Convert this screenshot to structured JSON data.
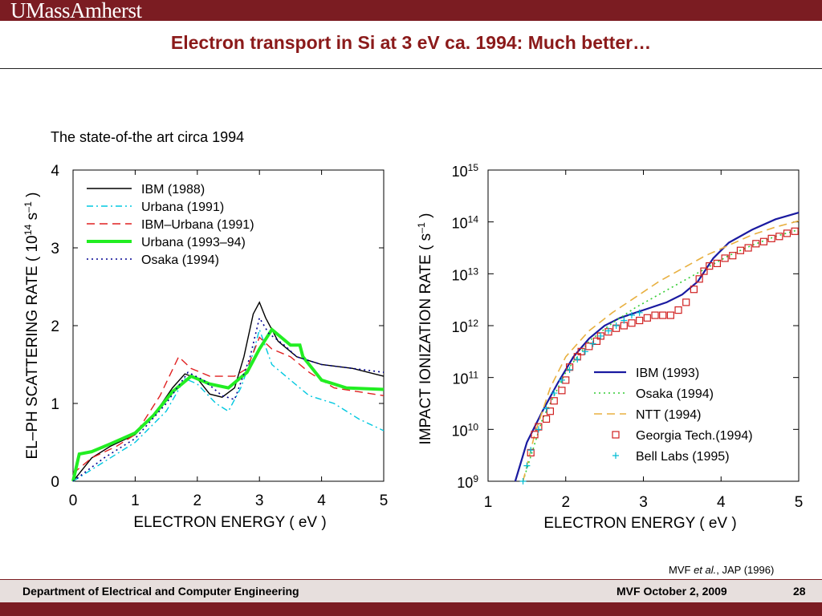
{
  "header": {
    "logo_text": "UMassAmherst"
  },
  "slide": {
    "title": "Electron transport in Si at 3 eV ca. 1994: Much better…",
    "subtitle": "The state-of-the art circa 1994",
    "citation": {
      "author": "MVF ",
      "etal": "et al.",
      "rest": ", JAP (1996)"
    }
  },
  "footer": {
    "department": "Department of Electrical and Computer Engineering",
    "date": "MVF October 2, 2009",
    "page": "28"
  },
  "colors": {
    "brand": "#7b1c22",
    "title": "#8b1a1a",
    "footer_bg": "#e7dfdd"
  },
  "chart_data": [
    {
      "type": "line",
      "xlabel": "ELECTRON ENERGY ( eV )",
      "ylabel": "EL–PH SCATTERING RATE ( 10<sup>14</sup> s<sup>–1</sup> )",
      "xlim": [
        0,
        5
      ],
      "ylim": [
        0,
        4
      ],
      "xticks": [
        "0",
        "1",
        "2",
        "3",
        "4",
        "5"
      ],
      "yticks": [
        "0",
        "1",
        "2",
        "3",
        "4"
      ],
      "legend": "top-left",
      "series": [
        {
          "name": "IBM (1988)",
          "color": "#000000",
          "style": "solid",
          "points": [
            [
              0,
              0
            ],
            [
              0.3,
              0.3
            ],
            [
              0.6,
              0.45
            ],
            [
              1.0,
              0.6
            ],
            [
              1.3,
              0.85
            ],
            [
              1.6,
              1.2
            ],
            [
              1.8,
              1.38
            ],
            [
              2.0,
              1.32
            ],
            [
              2.2,
              1.12
            ],
            [
              2.4,
              1.08
            ],
            [
              2.6,
              1.2
            ],
            [
              2.75,
              1.6
            ],
            [
              2.9,
              2.15
            ],
            [
              3.0,
              2.3
            ],
            [
              3.1,
              2.1
            ],
            [
              3.3,
              1.8
            ],
            [
              3.6,
              1.6
            ],
            [
              4.0,
              1.5
            ],
            [
              4.5,
              1.45
            ],
            [
              5.0,
              1.35
            ]
          ]
        },
        {
          "name": "Urbana (1991)",
          "color": "#00c8e0",
          "style": "dashdot",
          "points": [
            [
              0,
              0
            ],
            [
              0.5,
              0.25
            ],
            [
              1.0,
              0.5
            ],
            [
              1.5,
              0.9
            ],
            [
              1.8,
              1.32
            ],
            [
              2.0,
              1.25
            ],
            [
              2.3,
              1.0
            ],
            [
              2.5,
              0.9
            ],
            [
              2.7,
              1.2
            ],
            [
              2.9,
              1.65
            ],
            [
              3.0,
              1.95
            ],
            [
              3.2,
              1.5
            ],
            [
              3.5,
              1.3
            ],
            [
              3.8,
              1.1
            ],
            [
              4.2,
              1.0
            ],
            [
              4.6,
              0.8
            ],
            [
              5.0,
              0.65
            ]
          ]
        },
        {
          "name": "IBM–Urbana (1991)",
          "color": "#e02020",
          "style": "dash",
          "points": [
            [
              0,
              0.1
            ],
            [
              0.3,
              0.3
            ],
            [
              0.7,
              0.45
            ],
            [
              1.0,
              0.6
            ],
            [
              1.4,
              1.1
            ],
            [
              1.7,
              1.6
            ],
            [
              1.9,
              1.45
            ],
            [
              2.2,
              1.35
            ],
            [
              2.6,
              1.35
            ],
            [
              2.8,
              1.45
            ],
            [
              3.0,
              1.85
            ],
            [
              3.2,
              1.7
            ],
            [
              3.5,
              1.6
            ],
            [
              3.8,
              1.4
            ],
            [
              4.2,
              1.2
            ],
            [
              4.6,
              1.15
            ],
            [
              5.0,
              1.1
            ]
          ]
        },
        {
          "name": "Urbana (1993–94)",
          "color": "#22ee22",
          "style": "thick",
          "points": [
            [
              0,
              0
            ],
            [
              0.1,
              0.35
            ],
            [
              0.3,
              0.38
            ],
            [
              0.6,
              0.48
            ],
            [
              1.0,
              0.62
            ],
            [
              1.3,
              0.85
            ],
            [
              1.6,
              1.15
            ],
            [
              1.9,
              1.35
            ],
            [
              2.2,
              1.25
            ],
            [
              2.5,
              1.2
            ],
            [
              2.8,
              1.4
            ],
            [
              3.0,
              1.7
            ],
            [
              3.2,
              1.95
            ],
            [
              3.5,
              1.75
            ],
            [
              3.65,
              1.75
            ],
            [
              3.7,
              1.6
            ],
            [
              4.0,
              1.3
            ],
            [
              4.4,
              1.2
            ],
            [
              5.0,
              1.18
            ]
          ]
        },
        {
          "name": "Osaka (1994)",
          "color": "#000090",
          "style": "dot",
          "points": [
            [
              0,
              0
            ],
            [
              0.5,
              0.3
            ],
            [
              1.0,
              0.55
            ],
            [
              1.5,
              1.0
            ],
            [
              1.85,
              1.4
            ],
            [
              2.1,
              1.3
            ],
            [
              2.4,
              1.1
            ],
            [
              2.6,
              1.05
            ],
            [
              2.85,
              1.6
            ],
            [
              3.0,
              2.1
            ],
            [
              3.15,
              1.9
            ],
            [
              3.4,
              1.75
            ],
            [
              3.6,
              1.6
            ],
            [
              4.0,
              1.5
            ],
            [
              4.5,
              1.45
            ],
            [
              5.0,
              1.4
            ]
          ]
        }
      ]
    },
    {
      "type": "line",
      "xlabel": "ELECTRON ENERGY ( eV )",
      "ylabel": "IMPACT IONIZATION RATE ( s<sup>–1</sup> )",
      "xlim": [
        1,
        5
      ],
      "ylim_log10": [
        9,
        15
      ],
      "yscale": "log",
      "xticks": [
        "1",
        "2",
        "3",
        "4",
        "5"
      ],
      "yticks": [
        "10^9",
        "10^10",
        "10^11",
        "10^12",
        "10^13",
        "10^14",
        "10^15"
      ],
      "legend": "bottom-right",
      "series": [
        {
          "name": "IBM (1993)",
          "color": "#1a1aa0",
          "style": "solid",
          "points": [
            [
              1.35,
              9.0
            ],
            [
              1.5,
              9.75
            ],
            [
              1.7,
              10.35
            ],
            [
              1.9,
              10.9
            ],
            [
              2.1,
              11.4
            ],
            [
              2.3,
              11.75
            ],
            [
              2.5,
              12.0
            ],
            [
              2.7,
              12.15
            ],
            [
              2.9,
              12.25
            ],
            [
              3.1,
              12.35
            ],
            [
              3.3,
              12.45
            ],
            [
              3.5,
              12.6
            ],
            [
              3.7,
              12.85
            ],
            [
              3.9,
              13.3
            ],
            [
              4.1,
              13.6
            ],
            [
              4.4,
              13.85
            ],
            [
              4.7,
              14.05
            ],
            [
              5.0,
              14.18
            ]
          ]
        },
        {
          "name": "Osaka (1994)",
          "color": "#33cc33",
          "style": "dot",
          "points": [
            [
              1.45,
              9.0
            ],
            [
              1.7,
              10.2
            ],
            [
              2.0,
              11.1
            ],
            [
              2.3,
              11.7
            ],
            [
              2.6,
              12.05
            ],
            [
              2.9,
              12.35
            ],
            [
              3.2,
              12.6
            ],
            [
              3.5,
              12.85
            ],
            [
              3.8,
              13.1
            ],
            [
              4.1,
              13.35
            ],
            [
              4.4,
              13.55
            ],
            [
              4.7,
              13.72
            ],
            [
              5.0,
              13.85
            ]
          ]
        },
        {
          "name": "NTT (1994)",
          "color": "#e8b040",
          "style": "dash",
          "points": [
            [
              1.45,
              9.0
            ],
            [
              1.6,
              9.9
            ],
            [
              1.8,
              10.8
            ],
            [
              2.0,
              11.4
            ],
            [
              2.3,
              11.9
            ],
            [
              2.6,
              12.25
            ],
            [
              2.9,
              12.55
            ],
            [
              3.2,
              12.85
            ],
            [
              3.5,
              13.1
            ],
            [
              3.8,
              13.35
            ],
            [
              4.1,
              13.55
            ],
            [
              4.4,
              13.75
            ],
            [
              4.7,
              13.9
            ],
            [
              5.0,
              14.02
            ]
          ]
        }
      ],
      "markers": [
        {
          "name": "Georgia Tech.(1994)",
          "color": "#d02020",
          "symbol": "square",
          "points": [
            [
              1.55,
              9.55
            ],
            [
              1.6,
              9.9
            ],
            [
              1.65,
              10.05
            ],
            [
              1.75,
              10.2
            ],
            [
              1.8,
              10.35
            ],
            [
              1.85,
              10.55
            ],
            [
              1.95,
              10.75
            ],
            [
              2.0,
              10.95
            ],
            [
              2.05,
              11.2
            ],
            [
              2.15,
              11.4
            ],
            [
              2.2,
              11.5
            ],
            [
              2.3,
              11.6
            ],
            [
              2.4,
              11.7
            ],
            [
              2.45,
              11.8
            ],
            [
              2.55,
              11.88
            ],
            [
              2.65,
              11.95
            ],
            [
              2.75,
              12.0
            ],
            [
              2.85,
              12.05
            ],
            [
              2.95,
              12.1
            ],
            [
              3.05,
              12.15
            ],
            [
              3.15,
              12.2
            ],
            [
              3.25,
              12.2
            ],
            [
              3.35,
              12.2
            ],
            [
              3.45,
              12.3
            ],
            [
              3.55,
              12.45
            ],
            [
              3.65,
              12.7
            ],
            [
              3.72,
              12.9
            ],
            [
              3.78,
              13.05
            ],
            [
              3.85,
              13.15
            ],
            [
              3.95,
              13.2
            ],
            [
              4.05,
              13.3
            ],
            [
              4.15,
              13.35
            ],
            [
              4.25,
              13.45
            ],
            [
              4.35,
              13.5
            ],
            [
              4.45,
              13.58
            ],
            [
              4.55,
              13.62
            ],
            [
              4.65,
              13.68
            ],
            [
              4.75,
              13.72
            ],
            [
              4.85,
              13.78
            ],
            [
              4.95,
              13.82
            ]
          ]
        },
        {
          "name": "Bell Labs (1995)",
          "color": "#00bcd4",
          "symbol": "plus",
          "points": [
            [
              1.45,
              9.0
            ],
            [
              1.5,
              9.3
            ],
            [
              1.55,
              9.6
            ],
            [
              1.65,
              10.0
            ],
            [
              1.75,
              10.4
            ],
            [
              1.85,
              10.7
            ],
            [
              1.95,
              10.95
            ],
            [
              2.05,
              11.15
            ],
            [
              2.15,
              11.35
            ],
            [
              2.25,
              11.5
            ],
            [
              2.35,
              11.65
            ],
            [
              2.45,
              11.8
            ],
            [
              2.55,
              11.9
            ],
            [
              2.65,
              12.0
            ],
            [
              2.75,
              12.1
            ],
            [
              2.85,
              12.2
            ],
            [
              2.95,
              12.25
            ]
          ]
        }
      ]
    }
  ]
}
